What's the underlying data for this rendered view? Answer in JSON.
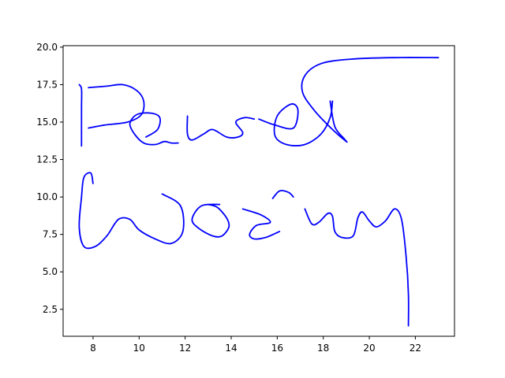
{
  "chart_data": {
    "type": "line",
    "title": "",
    "xlabel": "",
    "ylabel": "",
    "xlim": [
      6.7,
      23.7
    ],
    "ylim": [
      0.7,
      20.1
    ],
    "grid": false,
    "legend": "none",
    "xticks": [
      8,
      10,
      12,
      14,
      16,
      18,
      20,
      22
    ],
    "yticks": [
      2.5,
      5.0,
      7.5,
      10.0,
      12.5,
      15.0,
      17.5,
      20.0
    ],
    "xtick_labels": [
      "8",
      "10",
      "12",
      "14",
      "16",
      "18",
      "20",
      "22"
    ],
    "ytick_labels": [
      "2.5",
      "5.0",
      "7.5",
      "10.0",
      "12.5",
      "15.0",
      "17.5",
      "20.0"
    ],
    "series_color": "#0000ff",
    "strokes": [
      {
        "x": [
          7.4,
          7.5,
          7.5,
          7.5,
          7.5
        ],
        "y": [
          17.5,
          17.2,
          16.0,
          14.8,
          13.4
        ]
      },
      {
        "x": [
          7.8,
          8.5,
          9.5,
          10.1,
          10.2,
          9.9,
          9.3,
          8.6,
          7.8
        ],
        "y": [
          14.6,
          14.8,
          15.0,
          15.5,
          16.4,
          17.1,
          17.5,
          17.4,
          17.3
        ]
      },
      {
        "x": [
          10.3,
          10.8,
          10.9,
          10.5,
          9.9,
          9.6,
          9.8,
          10.2,
          10.7,
          11.1,
          11.4,
          11.7
        ],
        "y": [
          14.0,
          14.5,
          15.3,
          15.6,
          15.5,
          14.9,
          14.2,
          13.6,
          13.5,
          13.7,
          13.6,
          13.6
        ]
      },
      {
        "x": [
          12.1,
          12.1,
          12.3,
          12.8,
          13.2,
          13.8,
          14.3,
          14.5,
          14.2,
          14.6,
          15.0
        ],
        "y": [
          15.4,
          14.2,
          13.8,
          14.2,
          14.5,
          14.0,
          14.0,
          14.3,
          15.0,
          15.3,
          15.2
        ]
      },
      {
        "x": [
          15.2,
          15.9,
          16.7,
          16.9,
          16.6,
          16.0,
          15.9,
          16.4,
          17.2,
          17.9,
          18.3,
          18.4
        ],
        "y": [
          15.2,
          14.8,
          14.6,
          15.8,
          16.2,
          15.4,
          14.1,
          13.5,
          13.5,
          14.2,
          15.3,
          16.4
        ]
      },
      {
        "x": [
          18.3,
          18.5,
          18.9,
          19.0,
          18.4,
          17.6,
          17.1,
          17.2,
          17.9,
          19.2,
          21.0,
          23.0
        ],
        "y": [
          16.4,
          14.7,
          13.9,
          13.7,
          14.5,
          15.8,
          17.0,
          18.1,
          18.9,
          19.2,
          19.3,
          19.3
        ]
      },
      {
        "x": [
          8.0,
          7.9,
          7.6,
          7.5,
          7.4,
          7.6,
          8.1,
          8.6,
          9.1,
          9.6,
          10.0,
          10.7,
          11.4,
          11.9,
          11.8,
          11.0
        ],
        "y": [
          10.9,
          11.6,
          11.3,
          10.0,
          8.0,
          6.7,
          6.7,
          7.4,
          8.5,
          8.5,
          7.8,
          7.2,
          6.9,
          7.7,
          9.4,
          10.2
        ]
      },
      {
        "x": [
          13.5,
          12.7,
          12.3,
          12.6,
          13.2,
          13.6,
          13.9,
          13.8,
          13.4,
          13.0
        ],
        "y": [
          9.5,
          9.4,
          8.5,
          7.9,
          7.4,
          7.4,
          8.0,
          8.6,
          9.3,
          9.5
        ]
      },
      {
        "x": [
          14.5,
          15.3,
          15.7,
          15.1,
          14.8,
          15.0,
          15.5,
          16.1
        ],
        "y": [
          9.2,
          8.8,
          8.3,
          8.1,
          7.5,
          7.2,
          7.3,
          7.7
        ]
      },
      {
        "x": [
          15.8,
          16.1,
          16.5,
          16.7
        ],
        "y": [
          9.9,
          10.4,
          10.3,
          10.0
        ]
      },
      {
        "x": [
          17.2,
          17.5,
          17.8,
          18.2,
          18.4,
          18.5,
          18.8,
          19.3,
          19.5,
          19.7,
          20.0,
          20.3,
          20.7,
          21.1,
          21.4,
          21.6,
          21.7,
          21.7
        ],
        "y": [
          9.2,
          8.2,
          8.3,
          8.9,
          8.7,
          7.7,
          7.3,
          7.4,
          8.6,
          9.0,
          8.4,
          8.0,
          8.4,
          9.2,
          8.5,
          6.0,
          3.5,
          1.4
        ]
      }
    ]
  }
}
